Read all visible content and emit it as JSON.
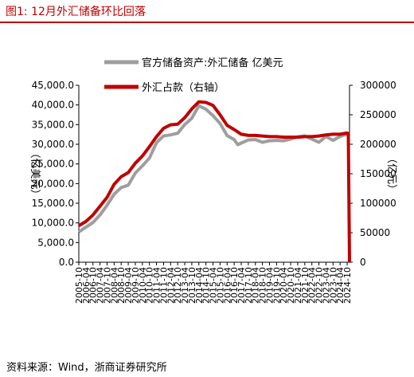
{
  "figure": {
    "title": "图1:  12月外汇储备环比回落",
    "source": "资料来源：Wind，浙商证券研究所"
  },
  "chart_data": {
    "type": "line",
    "left_axis": {
      "label": "（亿美元）",
      "ylim": [
        0,
        45000
      ],
      "ticks": [
        "0.0",
        "5,000.0",
        "10,000.0",
        "15,000.0",
        "20,000.0",
        "25,000.0",
        "30,000.0",
        "35,000.0",
        "40,000.0",
        "45,000.0"
      ]
    },
    "right_axis": {
      "label": "（亿元）",
      "ylim": [
        0,
        300000
      ],
      "ticks": [
        "0",
        "50000",
        "100000",
        "150000",
        "200000",
        "250000",
        "300000"
      ]
    },
    "x_ticks": [
      "2005-10",
      "2006-04",
      "2006-10",
      "2007-04",
      "2007-10",
      "2008-04",
      "2008-10",
      "2009-04",
      "2009-10",
      "2010-04",
      "2010-10",
      "2011-04",
      "2011-10",
      "2012-04",
      "2012-10",
      "2013-04",
      "2013-10",
      "2014-04",
      "2014-10",
      "2015-04",
      "2015-10",
      "2016-04",
      "2016-10",
      "2017-04",
      "2017-10",
      "2018-04",
      "2018-10",
      "2019-04",
      "2019-10",
      "2020-04",
      "2020-10",
      "2021-04",
      "2021-10",
      "2022-04",
      "2022-10",
      "2023-04",
      "2023-10",
      "2024-04",
      "2024-10"
    ],
    "series": [
      {
        "name": "官方储备资产:外汇储备 亿美元",
        "axis": "left",
        "color": "#9e9e9e",
        "points": [
          [
            "2005-10",
            7700
          ],
          [
            "2006-04",
            8900
          ],
          [
            "2006-10",
            10100
          ],
          [
            "2007-04",
            12000
          ],
          [
            "2007-10",
            14500
          ],
          [
            "2008-04",
            17300
          ],
          [
            "2008-10",
            19000
          ],
          [
            "2009-04",
            19600
          ],
          [
            "2009-10",
            22700
          ],
          [
            "2010-04",
            24500
          ],
          [
            "2010-10",
            26500
          ],
          [
            "2011-04",
            30400
          ],
          [
            "2011-10",
            32100
          ],
          [
            "2012-04",
            32400
          ],
          [
            "2012-10",
            32800
          ],
          [
            "2013-04",
            35000
          ],
          [
            "2013-10",
            36600
          ],
          [
            "2014-04",
            39800
          ],
          [
            "2014-10",
            38900
          ],
          [
            "2015-04",
            37300
          ],
          [
            "2015-10",
            35300
          ],
          [
            "2016-04",
            32200
          ],
          [
            "2016-10",
            31200
          ],
          [
            "2017-01",
            29900
          ],
          [
            "2017-04",
            30300
          ],
          [
            "2017-10",
            31100
          ],
          [
            "2018-04",
            31200
          ],
          [
            "2018-10",
            30500
          ],
          [
            "2019-04",
            30900
          ],
          [
            "2019-10",
            31000
          ],
          [
            "2020-04",
            30900
          ],
          [
            "2020-10",
            31300
          ],
          [
            "2021-04",
            31900
          ],
          [
            "2021-10",
            32100
          ],
          [
            "2022-04",
            31300
          ],
          [
            "2022-10",
            30500
          ],
          [
            "2023-04",
            32000
          ],
          [
            "2023-10",
            31000
          ],
          [
            "2024-04",
            32000
          ],
          [
            "2024-10",
            32600
          ],
          [
            "2024-12",
            32000
          ]
        ]
      },
      {
        "name": "外汇占款（右轴）",
        "axis": "right",
        "color": "#c00000",
        "points": [
          [
            "2005-10",
            62000
          ],
          [
            "2006-04",
            69000
          ],
          [
            "2006-10",
            80000
          ],
          [
            "2007-04",
            95000
          ],
          [
            "2007-10",
            110000
          ],
          [
            "2008-04",
            132000
          ],
          [
            "2008-10",
            145000
          ],
          [
            "2009-04",
            152000
          ],
          [
            "2009-10",
            168000
          ],
          [
            "2010-04",
            180000
          ],
          [
            "2010-10",
            196000
          ],
          [
            "2011-04",
            213000
          ],
          [
            "2011-10",
            227000
          ],
          [
            "2012-04",
            233000
          ],
          [
            "2012-10",
            234000
          ],
          [
            "2013-04",
            245000
          ],
          [
            "2013-10",
            260000
          ],
          [
            "2014-04",
            272000
          ],
          [
            "2014-10",
            271000
          ],
          [
            "2015-04",
            266000
          ],
          [
            "2015-10",
            250000
          ],
          [
            "2016-04",
            232000
          ],
          [
            "2016-10",
            225000
          ],
          [
            "2017-04",
            217000
          ],
          [
            "2017-10",
            215000
          ],
          [
            "2018-04",
            215000
          ],
          [
            "2018-10",
            214000
          ],
          [
            "2019-04",
            213000
          ],
          [
            "2019-10",
            213000
          ],
          [
            "2020-04",
            212000
          ],
          [
            "2020-10",
            212000
          ],
          [
            "2021-04",
            212000
          ],
          [
            "2021-10",
            213000
          ],
          [
            "2022-04",
            213000
          ],
          [
            "2022-10",
            214000
          ],
          [
            "2023-04",
            216000
          ],
          [
            "2023-10",
            217000
          ],
          [
            "2024-04",
            217000
          ],
          [
            "2024-10",
            219000
          ],
          [
            "2024-11",
            218000
          ],
          [
            "2024-12",
            0
          ]
        ]
      }
    ],
    "legend_position": "top",
    "grid": false
  }
}
